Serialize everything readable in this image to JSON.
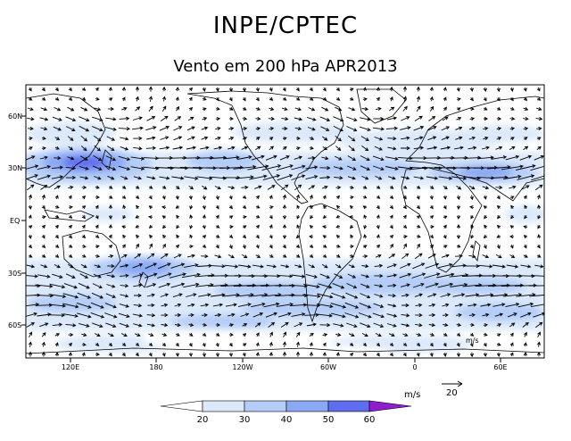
{
  "header": {
    "title": "INPE/CPTEC",
    "subtitle": "Vento em 200 hPa APR2013"
  },
  "map": {
    "lat_labels": [
      "60N",
      "30N",
      "EQ",
      "30S",
      "60S"
    ],
    "lon_labels": [
      "120E",
      "180",
      "120W",
      "60W",
      "0",
      "60E"
    ],
    "corner_unit": "m/s"
  },
  "legend": {
    "unit": "m/s",
    "reference_vector": "20",
    "levels": [
      "20",
      "30",
      "40",
      "50",
      "60"
    ],
    "colors": [
      "#ffffff",
      "#dce9fb",
      "#b4cdf8",
      "#8aa8f4",
      "#5f6df0",
      "#8e1fcf"
    ]
  },
  "colors": {
    "frame": "#000000",
    "coast": "#000000"
  }
}
